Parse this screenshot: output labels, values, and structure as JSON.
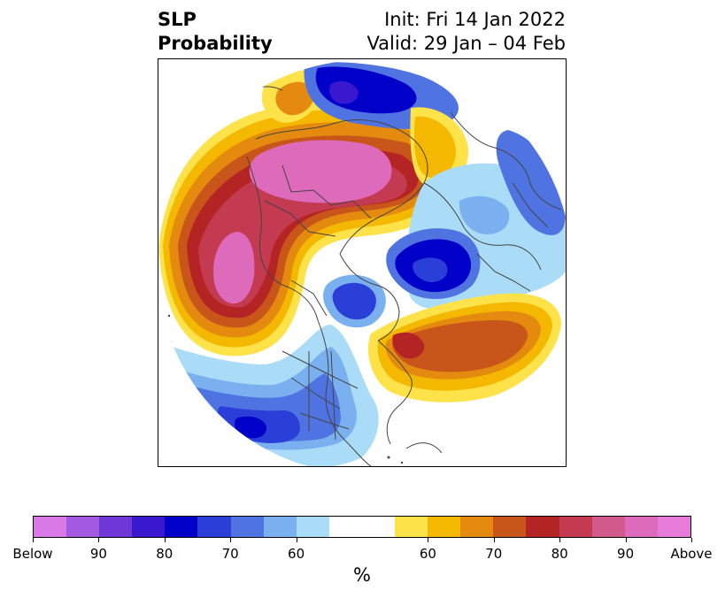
{
  "title": {
    "left_line1": "SLP",
    "left_line2": "Probability",
    "right_line1": "Init: Fri 14 Jan 2022",
    "right_line2": "Valid: 29 Jan – 04 Feb"
  },
  "colorbar": {
    "colors": [
      "#d97ae8",
      "#a35ae0",
      "#6f36d8",
      "#3a18d0",
      "#0000c8",
      "#2a3ed8",
      "#4f74e2",
      "#7ab0ef",
      "#aadcf8",
      "#ffffff",
      "#ffffff",
      "#fde24a",
      "#f4b800",
      "#e38a0f",
      "#c8551a",
      "#b42424",
      "#c43a50",
      "#d25a8a",
      "#dd6aba",
      "#e87ad8"
    ],
    "labels": [
      "Below",
      "90",
      "80",
      "70",
      "60",
      "60",
      "70",
      "80",
      "90",
      "Above"
    ],
    "unit": "%"
  },
  "map": {
    "projection": "north-polar-stereographic",
    "colors": {
      "above_strong": "#dd6aba",
      "above_90": "#c43a50",
      "above_80": "#b42424",
      "above_70": "#c8551a",
      "above_65": "#e38a0f",
      "above_60": "#f4b800",
      "above_55": "#fde24a",
      "below_55": "#aadcf8",
      "below_60": "#7ab0ef",
      "below_70": "#4f74e2",
      "below_75": "#2a3ed8",
      "below_80": "#0000c8",
      "coastline": "#444444"
    }
  }
}
